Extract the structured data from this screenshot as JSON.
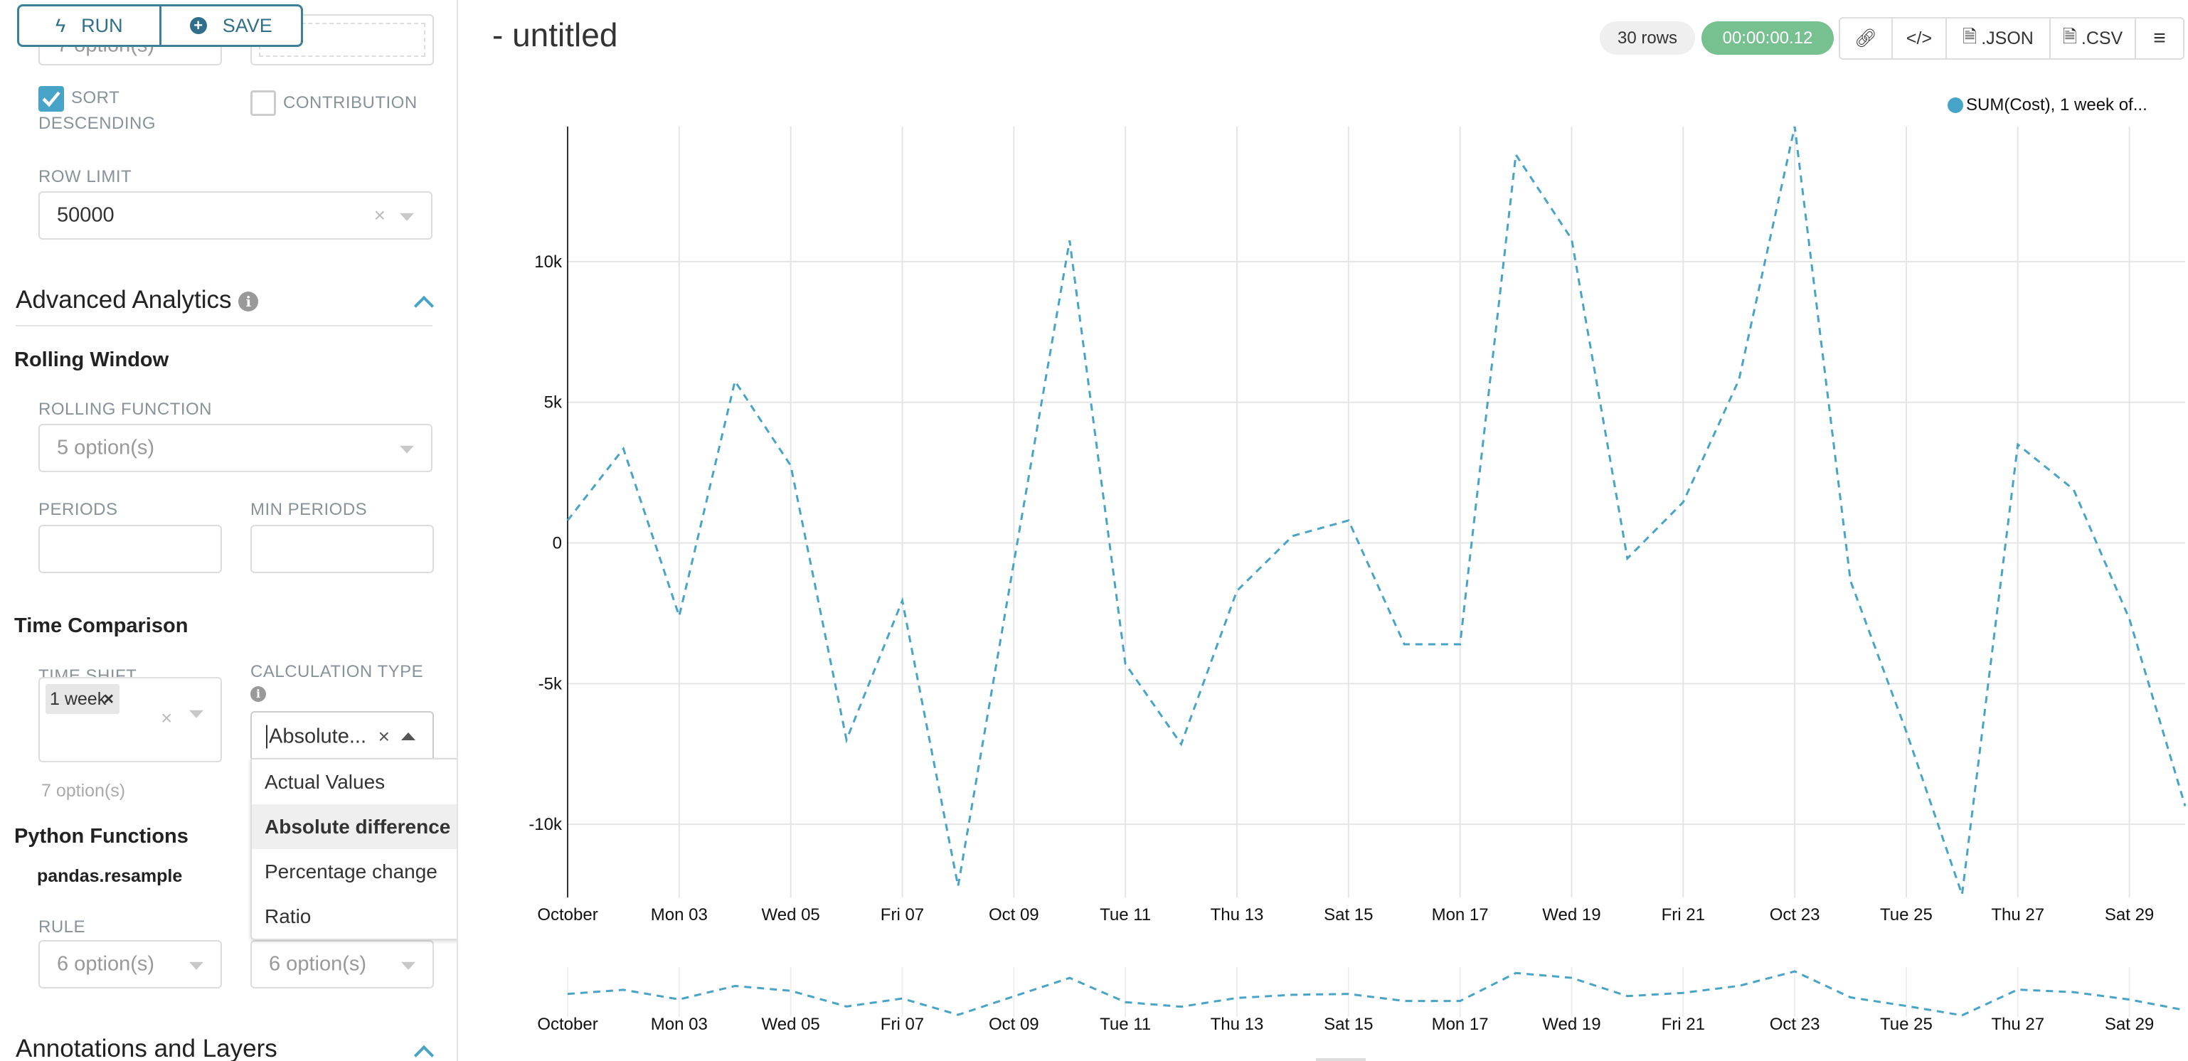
{
  "toolbar": {
    "run_label": "RUN",
    "save_label": "SAVE"
  },
  "sidebar": {
    "hidden_select_value": "7 option(s)",
    "sort_descending": {
      "label_line1": "SORT",
      "label_line2": "DESCENDING",
      "checked": true
    },
    "contribution": {
      "label": "CONTRIBUTION",
      "checked": false
    },
    "row_limit": {
      "label": "ROW LIMIT",
      "value": "50000"
    },
    "advanced_analytics": {
      "title": "Advanced Analytics"
    },
    "rolling_window": {
      "title": "Rolling Window",
      "rolling_function_label": "ROLLING FUNCTION",
      "rolling_function_placeholder": "5 option(s)",
      "periods_label": "PERIODS",
      "min_periods_label": "MIN PERIODS"
    },
    "time_comparison": {
      "title": "Time Comparison",
      "time_shift_label": "TIME SHIFT",
      "time_shift_tag": "1 week",
      "time_shift_hint": "7 option(s)",
      "calc_type_label": "CALCULATION TYPE",
      "calc_type_value": "Absolute...",
      "calc_type_options": [
        "Actual Values",
        "Absolute difference",
        "Percentage change",
        "Ratio"
      ],
      "calc_type_active": 1
    },
    "python_functions": {
      "title": "Python Functions",
      "resample_label": "pandas.resample",
      "rule_label": "RULE",
      "rule_placeholder": "6 option(s)",
      "method_placeholder": "6 option(s)"
    },
    "annotations": {
      "title": "Annotations and Layers"
    }
  },
  "header": {
    "title": "- untitled",
    "rows": "30 rows",
    "timer": "00:00:00.12",
    "json_label": ".JSON",
    "csv_label": ".CSV"
  },
  "colors": {
    "accent": "#48a4c7",
    "timer_bg": "#77c08f",
    "brand_border": "#3f7f99"
  },
  "chart_data": {
    "type": "line",
    "legend": "SUM(Cost), 1 week of...",
    "legend_placement": "top-right",
    "line_style": "dashed",
    "x": [
      "2016-10-01",
      "2016-10-02",
      "2016-10-03",
      "2016-10-04",
      "2016-10-05",
      "2016-10-06",
      "2016-10-07",
      "2016-10-08",
      "2016-10-09",
      "2016-10-10",
      "2016-10-11",
      "2016-10-12",
      "2016-10-13",
      "2016-10-14",
      "2016-10-15",
      "2016-10-16",
      "2016-10-17",
      "2016-10-18",
      "2016-10-19",
      "2016-10-20",
      "2016-10-21",
      "2016-10-22",
      "2016-10-23",
      "2016-10-24",
      "2016-10-25",
      "2016-10-26",
      "2016-10-27",
      "2016-10-28",
      "2016-10-29",
      "2016-10-30"
    ],
    "values": [
      800,
      3350,
      -2600,
      5750,
      2750,
      -7000,
      -2050,
      -12200,
      -700,
      10750,
      -4300,
      -7150,
      -1700,
      250,
      800,
      -3600,
      -3600,
      13800,
      10800,
      -550,
      1450,
      5800,
      14800,
      -1350,
      -6700,
      -12500,
      3500,
      1900,
      -2700,
      -9350
    ],
    "ylim": [
      -12600,
      14800
    ],
    "y_ticks": [
      -10000,
      -5000,
      0,
      5000,
      10000
    ],
    "y_tick_labels": [
      "-10k",
      "-5k",
      "0",
      "5k",
      "10k"
    ],
    "x_tick_labels": [
      "October",
      "Mon 03",
      "Wed 05",
      "Fri 07",
      "Oct 09",
      "Tue 11",
      "Thu 13",
      "Sat 15",
      "Mon 17",
      "Wed 19",
      "Fri 21",
      "Oct 23",
      "Tue 25",
      "Thu 27",
      "Sat 29"
    ],
    "grid": true,
    "color": "#48a4c7"
  }
}
